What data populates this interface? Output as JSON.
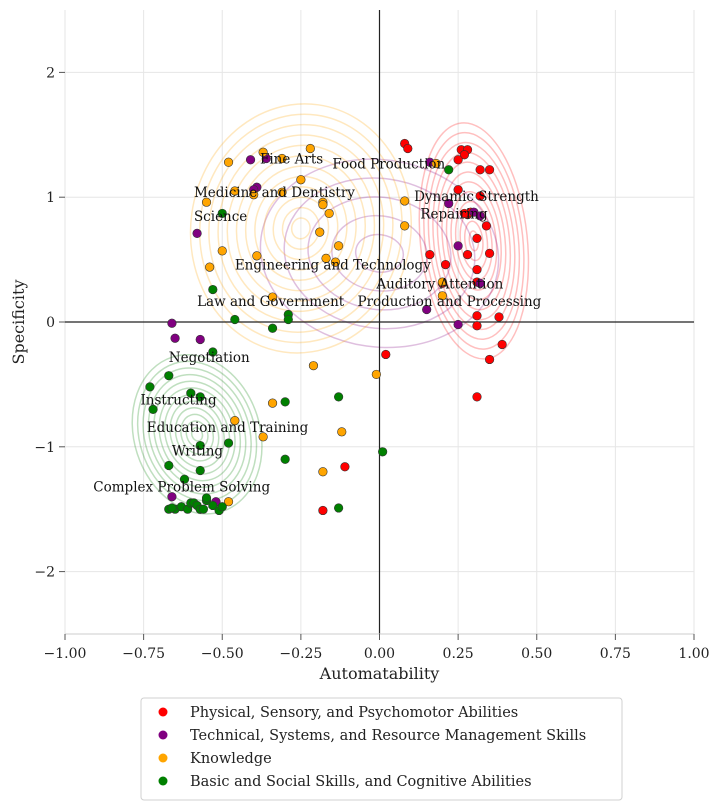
{
  "chart_data": {
    "type": "scatter",
    "title": "",
    "xlabel": "Automatability",
    "ylabel": "Specificity",
    "xlim": [
      -1.0,
      1.0
    ],
    "ylim": [
      -2.5,
      2.5
    ],
    "xticks": [
      -1.0,
      -0.75,
      -0.5,
      -0.25,
      0.0,
      0.25,
      0.5,
      0.75,
      1.0
    ],
    "xtick_labels": [
      "−1.00",
      "−0.75",
      "−0.50",
      "−0.25",
      "0.00",
      "0.25",
      "0.50",
      "0.75",
      "1.00"
    ],
    "yticks": [
      -2,
      -1,
      0,
      1,
      2
    ],
    "ytick_labels": [
      "−2",
      "−1",
      "0",
      "1",
      "2"
    ],
    "grid": true,
    "reference_lines": {
      "x": 0,
      "y": 0
    },
    "legend_position": "bottom-center",
    "series": [
      {
        "name": "Physical, Sensory, and Psychomotor Abilities",
        "color": "#ff0000",
        "kde_center": [
          0.3,
          0.65
        ],
        "kde_spread": [
          0.17,
          0.95
        ],
        "points": [
          [
            0.08,
            1.43
          ],
          [
            0.09,
            1.39
          ],
          [
            0.26,
            1.38
          ],
          [
            0.28,
            1.38
          ],
          [
            0.27,
            1.34
          ],
          [
            0.25,
            1.3
          ],
          [
            0.35,
            1.22
          ],
          [
            0.32,
            1.22
          ],
          [
            0.25,
            1.06
          ],
          [
            0.32,
            1.01
          ],
          [
            0.28,
            0.86
          ],
          [
            0.34,
            0.77
          ],
          [
            0.31,
            0.67
          ],
          [
            0.28,
            0.54
          ],
          [
            0.35,
            0.55
          ],
          [
            0.16,
            0.54
          ],
          [
            0.21,
            0.46
          ],
          [
            0.31,
            0.42
          ],
          [
            0.2,
            0.31
          ],
          [
            0.31,
            0.32
          ],
          [
            0.31,
            0.05
          ],
          [
            0.38,
            0.04
          ],
          [
            0.31,
            -0.03
          ],
          [
            0.39,
            -0.18
          ],
          [
            0.35,
            -0.3
          ],
          [
            0.02,
            -0.26
          ],
          [
            0.31,
            -0.6
          ],
          [
            -0.11,
            -1.16
          ],
          [
            -0.18,
            -1.51
          ],
          [
            -0.57,
            -1.5
          ],
          [
            0.29,
            0.88
          ],
          [
            0.27,
            0.87
          ]
        ]
      },
      {
        "name": "Technical, Systems, and Resource Management Skills",
        "color": "#800080",
        "kde_center": [
          0.0,
          0.55
        ],
        "kde_spread": [
          0.38,
          0.75
        ],
        "points": [
          [
            -0.41,
            1.3
          ],
          [
            -0.36,
            1.31
          ],
          [
            -0.39,
            1.08
          ],
          [
            -0.4,
            1.06
          ],
          [
            -0.58,
            0.71
          ],
          [
            0.16,
            1.28
          ],
          [
            0.22,
            0.95
          ],
          [
            0.32,
            0.85
          ],
          [
            0.25,
            0.61
          ],
          [
            0.32,
            0.31
          ],
          [
            0.15,
            0.1
          ],
          [
            0.25,
            -0.02
          ],
          [
            -0.66,
            -0.01
          ],
          [
            -0.65,
            -0.13
          ],
          [
            -0.57,
            -0.14
          ],
          [
            -0.66,
            -1.4
          ],
          [
            -0.52,
            -1.44
          ],
          [
            0.3,
            0.88
          ]
        ]
      },
      {
        "name": "Knowledge",
        "color": "#ffa500",
        "kde_center": [
          -0.25,
          0.75
        ],
        "kde_spread": [
          0.35,
          1.0
        ],
        "points": [
          [
            -0.48,
            1.28
          ],
          [
            -0.37,
            1.36
          ],
          [
            -0.31,
            1.31
          ],
          [
            -0.22,
            1.39
          ],
          [
            -0.25,
            1.14
          ],
          [
            -0.46,
            1.05
          ],
          [
            -0.4,
            1.02
          ],
          [
            -0.31,
            1.04
          ],
          [
            -0.55,
            0.96
          ],
          [
            -0.18,
            0.96
          ],
          [
            -0.18,
            0.94
          ],
          [
            -0.16,
            0.87
          ],
          [
            -0.19,
            0.72
          ],
          [
            -0.13,
            0.61
          ],
          [
            -0.5,
            0.57
          ],
          [
            -0.39,
            0.53
          ],
          [
            -0.17,
            0.51
          ],
          [
            -0.14,
            0.48
          ],
          [
            -0.54,
            0.44
          ],
          [
            -0.34,
            0.2
          ],
          [
            0.08,
            0.97
          ],
          [
            0.08,
            0.77
          ],
          [
            0.2,
            0.32
          ],
          [
            0.2,
            0.21
          ],
          [
            -0.21,
            -0.35
          ],
          [
            -0.01,
            -0.42
          ],
          [
            -0.34,
            -0.65
          ],
          [
            -0.12,
            -0.88
          ],
          [
            -0.46,
            -0.79
          ],
          [
            -0.37,
            -0.92
          ],
          [
            -0.18,
            -1.2
          ],
          [
            -0.48,
            -1.44
          ],
          [
            0.18,
            1.27
          ]
        ]
      },
      {
        "name": "Basic and Social Skills, and Cognitive Abilities",
        "color": "#008000",
        "kde_center": [
          -0.58,
          -0.9
        ],
        "kde_spread": [
          0.2,
          0.65
        ],
        "points": [
          [
            -0.5,
            0.87
          ],
          [
            -0.53,
            0.26
          ],
          [
            -0.46,
            0.02
          ],
          [
            -0.29,
            0.06
          ],
          [
            -0.29,
            0.02
          ],
          [
            -0.34,
            -0.05
          ],
          [
            0.22,
            1.22
          ],
          [
            -0.53,
            -0.24
          ],
          [
            -0.67,
            -0.43
          ],
          [
            -0.73,
            -0.52
          ],
          [
            -0.6,
            -0.57
          ],
          [
            -0.57,
            -0.6
          ],
          [
            -0.72,
            -0.7
          ],
          [
            -0.3,
            -0.64
          ],
          [
            -0.13,
            -0.6
          ],
          [
            -0.57,
            -0.99
          ],
          [
            -0.48,
            -0.97
          ],
          [
            -0.67,
            -1.15
          ],
          [
            -0.3,
            -1.1
          ],
          [
            0.01,
            -1.04
          ],
          [
            -0.57,
            -1.19
          ],
          [
            -0.62,
            -1.26
          ],
          [
            -0.13,
            -1.49
          ],
          [
            -0.67,
            -1.5
          ],
          [
            -0.65,
            -1.5
          ],
          [
            -0.63,
            -1.48
          ],
          [
            -0.61,
            -1.5
          ],
          [
            -0.6,
            -1.45
          ],
          [
            -0.59,
            -1.45
          ],
          [
            -0.58,
            -1.47
          ],
          [
            -0.57,
            -1.5
          ],
          [
            -0.56,
            -1.5
          ],
          [
            -0.55,
            -1.43
          ],
          [
            -0.53,
            -1.47
          ],
          [
            -0.51,
            -1.51
          ],
          [
            -0.5,
            -1.48
          ],
          [
            -0.55,
            -1.41
          ],
          [
            -0.66,
            -1.49
          ]
        ]
      }
    ],
    "annotations": [
      {
        "text": "Fine Arts",
        "x": -0.38,
        "y": 1.31
      },
      {
        "text": "Food Production",
        "x": -0.15,
        "y": 1.27
      },
      {
        "text": "Medicine and Dentistry",
        "x": -0.59,
        "y": 1.04
      },
      {
        "text": "Dynamic Strength",
        "x": 0.11,
        "y": 1.01
      },
      {
        "text": "Repairing",
        "x": 0.13,
        "y": 0.87
      },
      {
        "text": "Science",
        "x": -0.59,
        "y": 0.85
      },
      {
        "text": "Engineering and Technology",
        "x": -0.46,
        "y": 0.46
      },
      {
        "text": "Auditory Attention",
        "x": -0.01,
        "y": 0.31
      },
      {
        "text": "Production and Processing",
        "x": -0.07,
        "y": 0.17
      },
      {
        "text": "Law and Government",
        "x": -0.58,
        "y": 0.17
      },
      {
        "text": "Negotiation",
        "x": -0.67,
        "y": -0.28
      },
      {
        "text": "Instructing",
        "x": -0.76,
        "y": -0.62
      },
      {
        "text": "Education and Training",
        "x": -0.74,
        "y": -0.84
      },
      {
        "text": "Writing",
        "x": -0.66,
        "y": -1.03
      },
      {
        "text": "Complex Problem Solving",
        "x": -0.91,
        "y": -1.32
      }
    ]
  }
}
